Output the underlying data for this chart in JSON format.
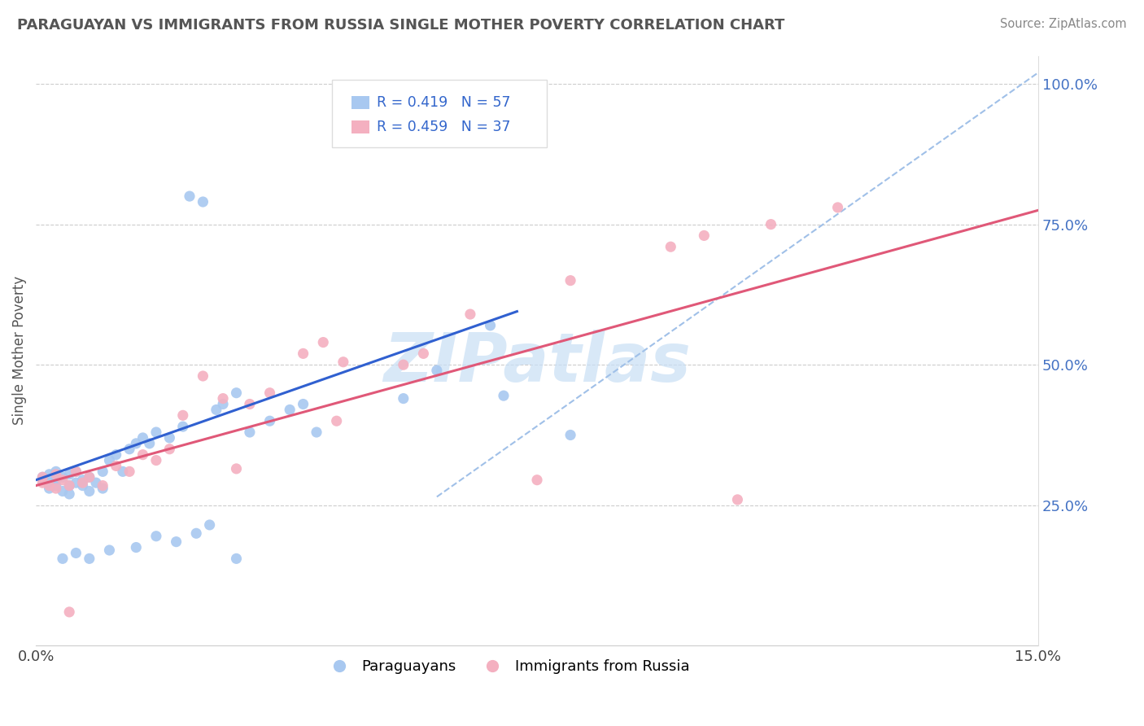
{
  "title": "PARAGUAYAN VS IMMIGRANTS FROM RUSSIA SINGLE MOTHER POVERTY CORRELATION CHART",
  "source": "Source: ZipAtlas.com",
  "ylabel": "Single Mother Poverty",
  "xlim": [
    0.0,
    0.15
  ],
  "ylim": [
    0.0,
    1.05
  ],
  "ytick_vals": [
    0.25,
    0.5,
    0.75,
    1.0
  ],
  "ytick_labels": [
    "25.0%",
    "50.0%",
    "75.0%",
    "100.0%"
  ],
  "xtick_vals": [
    0.0,
    0.15
  ],
  "xtick_labels": [
    "0.0%",
    "15.0%"
  ],
  "legend_blue_label": "R = 0.419   N = 57",
  "legend_pink_label": "R = 0.459   N = 37",
  "blue_color": "#a8c8f0",
  "pink_color": "#f4b0c0",
  "blue_line_color": "#3060d0",
  "pink_line_color": "#e05878",
  "dash_color": "#a0c0e8",
  "watermark_color": "#c8dff5",
  "blue_line_x": [
    0.0,
    0.072
  ],
  "blue_line_y": [
    0.295,
    0.595
  ],
  "pink_line_x": [
    0.0,
    0.15
  ],
  "pink_line_y": [
    0.285,
    0.775
  ],
  "dash_line_x": [
    0.06,
    0.15
  ],
  "dash_line_y": [
    0.265,
    1.02
  ],
  "blue_x": [
    0.001,
    0.001,
    0.002,
    0.002,
    0.002,
    0.003,
    0.003,
    0.003,
    0.004,
    0.004,
    0.005,
    0.005,
    0.005,
    0.006,
    0.006,
    0.007,
    0.007,
    0.008,
    0.008,
    0.009,
    0.01,
    0.01,
    0.011,
    0.012,
    0.013,
    0.014,
    0.015,
    0.016,
    0.017,
    0.018,
    0.02,
    0.022,
    0.023,
    0.025,
    0.027,
    0.028,
    0.03,
    0.032,
    0.035,
    0.038,
    0.04,
    0.042,
    0.055,
    0.06,
    0.068,
    0.07,
    0.08,
    0.021,
    0.024,
    0.015,
    0.018,
    0.026,
    0.03,
    0.008,
    0.011,
    0.006,
    0.004
  ],
  "blue_y": [
    0.295,
    0.3,
    0.29,
    0.305,
    0.28,
    0.31,
    0.285,
    0.295,
    0.3,
    0.275,
    0.285,
    0.305,
    0.27,
    0.29,
    0.31,
    0.295,
    0.285,
    0.3,
    0.275,
    0.29,
    0.31,
    0.28,
    0.33,
    0.34,
    0.31,
    0.35,
    0.36,
    0.37,
    0.36,
    0.38,
    0.37,
    0.39,
    0.8,
    0.79,
    0.42,
    0.43,
    0.45,
    0.38,
    0.4,
    0.42,
    0.43,
    0.38,
    0.44,
    0.49,
    0.57,
    0.445,
    0.375,
    0.185,
    0.2,
    0.175,
    0.195,
    0.215,
    0.155,
    0.155,
    0.17,
    0.165,
    0.155
  ],
  "pink_x": [
    0.001,
    0.001,
    0.002,
    0.003,
    0.003,
    0.004,
    0.005,
    0.006,
    0.007,
    0.008,
    0.01,
    0.012,
    0.014,
    0.016,
    0.018,
    0.02,
    0.022,
    0.025,
    0.028,
    0.032,
    0.035,
    0.04,
    0.043,
    0.046,
    0.055,
    0.058,
    0.065,
    0.08,
    0.095,
    0.1,
    0.11,
    0.12,
    0.105,
    0.045,
    0.03,
    0.075,
    0.005
  ],
  "pink_y": [
    0.3,
    0.29,
    0.285,
    0.305,
    0.28,
    0.295,
    0.285,
    0.31,
    0.29,
    0.3,
    0.285,
    0.32,
    0.31,
    0.34,
    0.33,
    0.35,
    0.41,
    0.48,
    0.44,
    0.43,
    0.45,
    0.52,
    0.54,
    0.505,
    0.5,
    0.52,
    0.59,
    0.65,
    0.71,
    0.73,
    0.75,
    0.78,
    0.26,
    0.4,
    0.315,
    0.295,
    0.06
  ]
}
